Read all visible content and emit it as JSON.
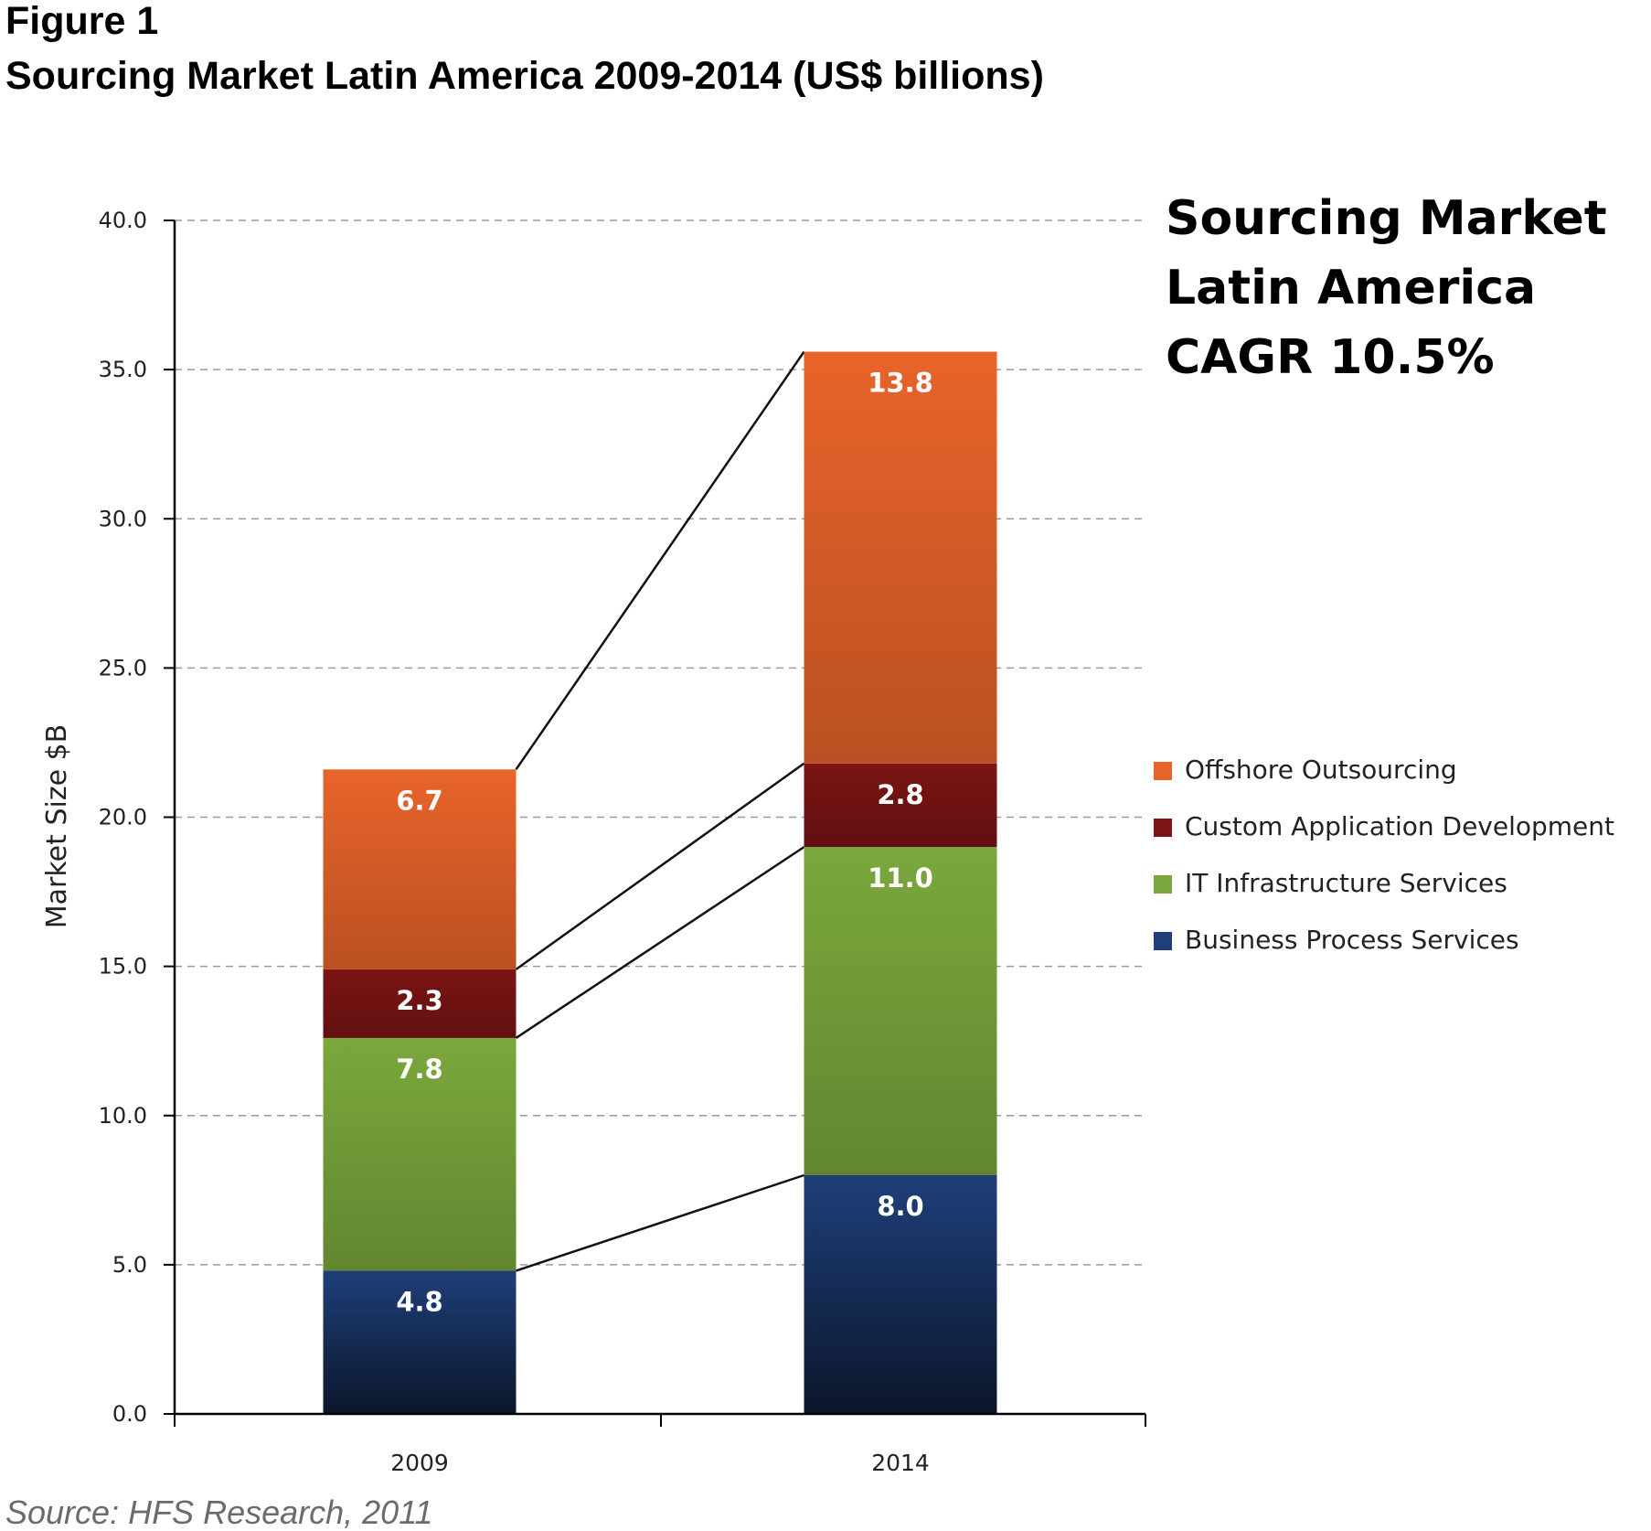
{
  "figure_label": "Figure 1",
  "figure_title": "Sourcing Market Latin America 2009-2014 (US$ billions)",
  "source": "Source: HFS Research, 2011",
  "chart_data": {
    "type": "bar",
    "stacked": true,
    "categories": [
      "2009",
      "2014"
    ],
    "series": [
      {
        "name": "Business Process Services",
        "values": [
          4.8,
          8.0
        ],
        "color": "#1f3f7a"
      },
      {
        "name": "IT Infrastructure Services",
        "values": [
          7.8,
          11.0
        ],
        "color": "#7aa83c"
      },
      {
        "name": "Custom Application Development",
        "values": [
          2.3,
          2.8
        ],
        "color": "#7b1414"
      },
      {
        "name": "Offshore Outsourcing",
        "values": [
          6.7,
          13.8
        ],
        "color": "#e8642a"
      }
    ],
    "legend_order": [
      "Offshore Outsourcing",
      "Custom Application Development",
      "IT Infrastructure Services",
      "Business Process Services"
    ],
    "legend_position": "right",
    "ylabel": "Market Size $B",
    "xlabel": "",
    "ylim": [
      0,
      40
    ],
    "yticks": [
      "0.0",
      "5.0",
      "10.0",
      "15.0",
      "20.0",
      "25.0",
      "30.0",
      "35.0",
      "40.0"
    ],
    "grid": true,
    "connector_lines": true,
    "annotation": [
      "Sourcing Market",
      "Latin America",
      "CAGR 10.5%"
    ]
  }
}
